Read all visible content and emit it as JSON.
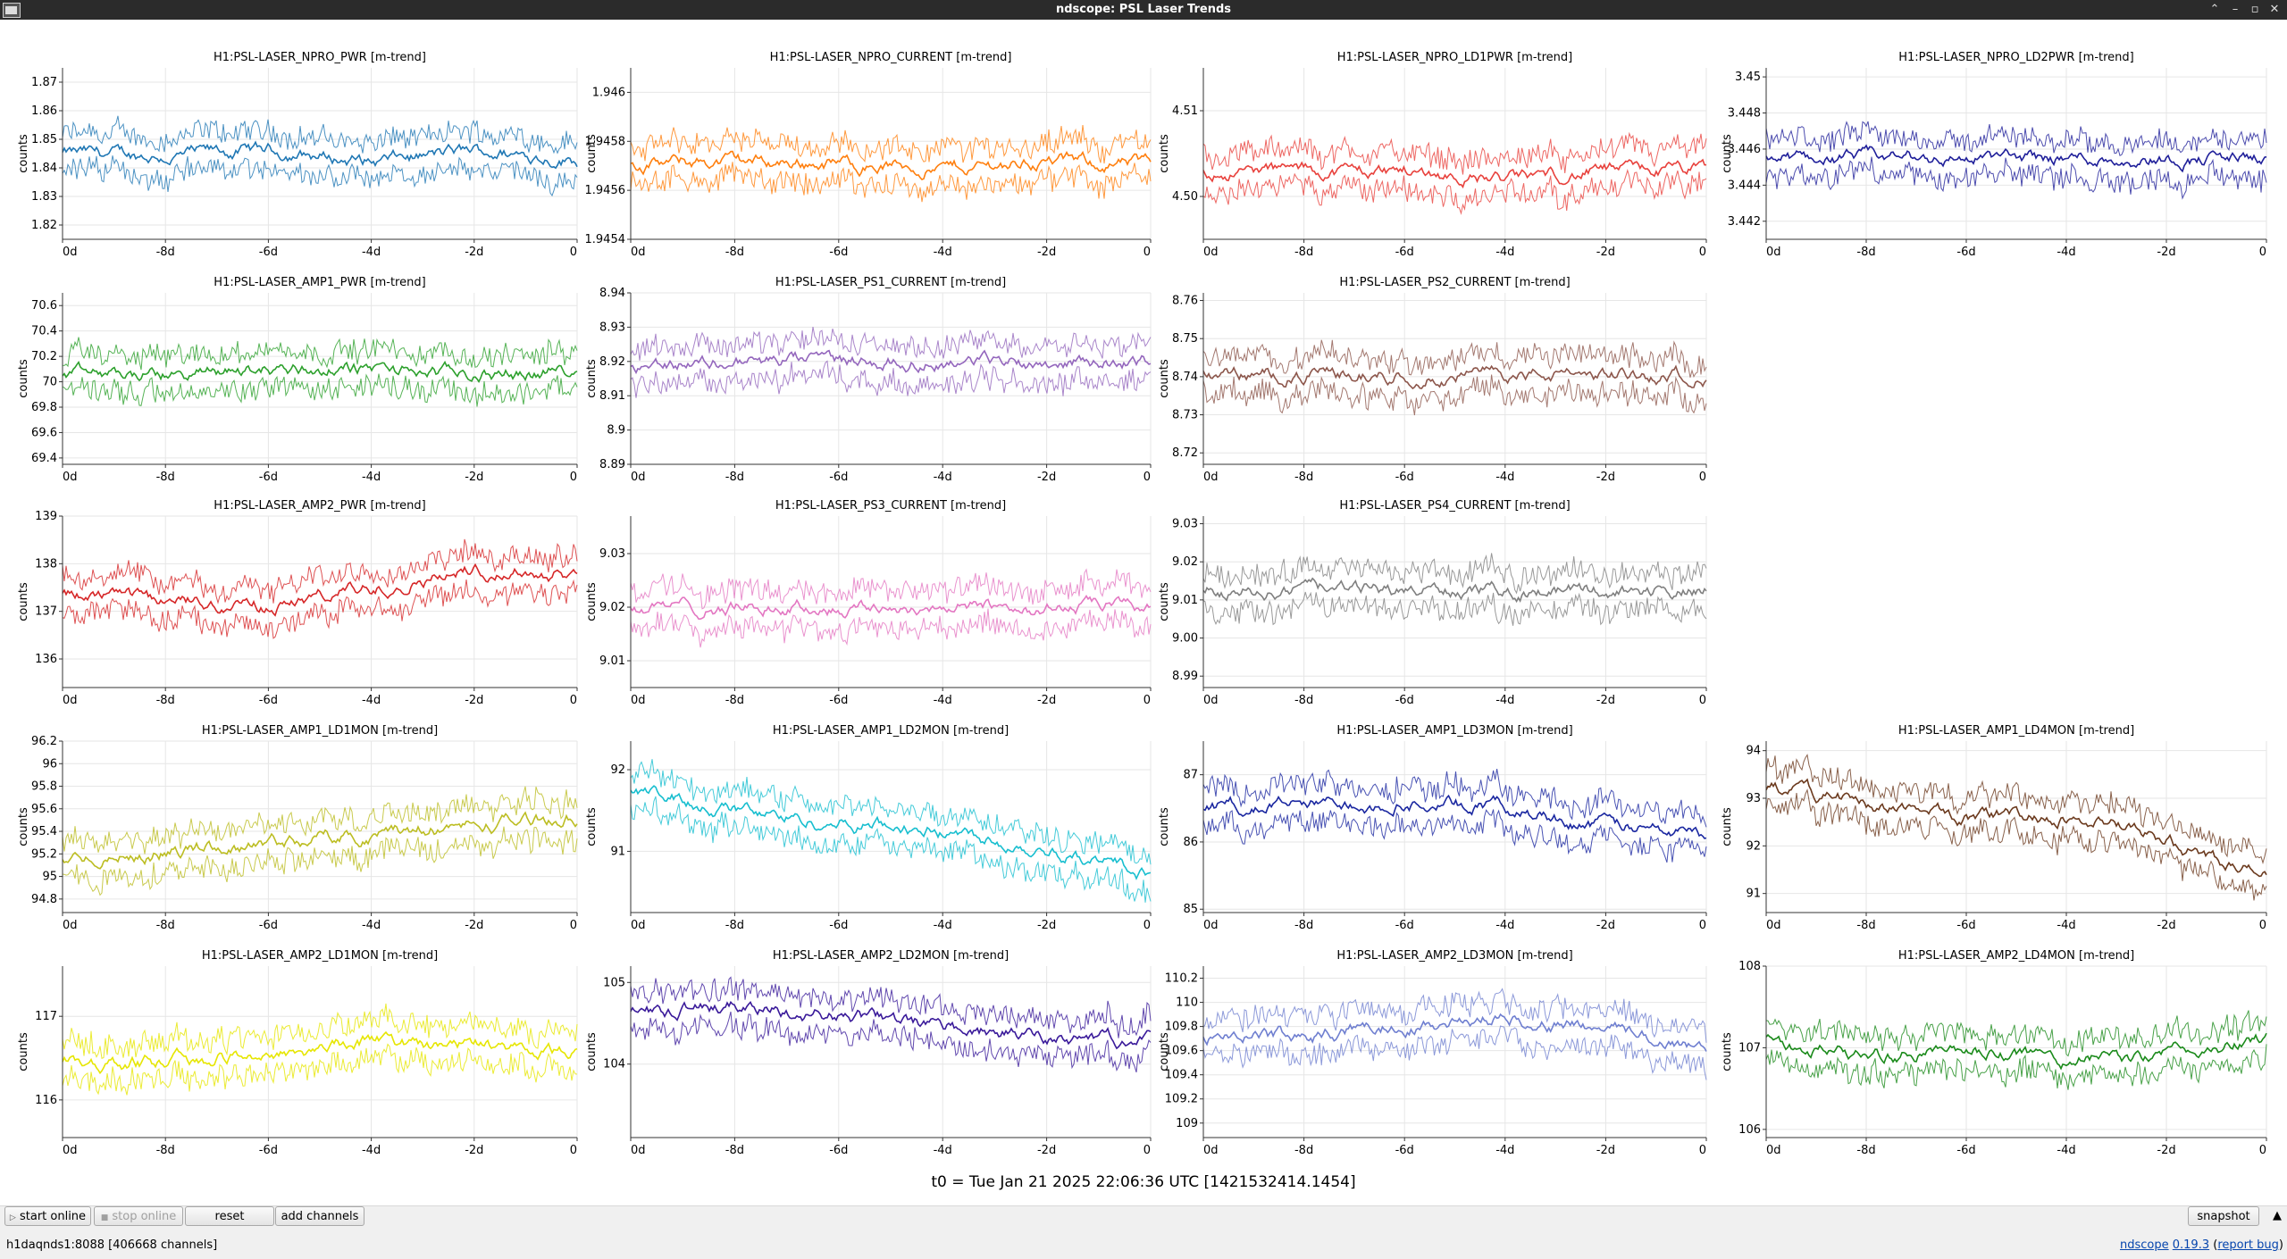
{
  "window": {
    "title": "ndscope: PSL Laser Trends"
  },
  "t0_label": "t0 = Tue Jan 21 2025 22:06:36 UTC [1421532414.1454]",
  "toolbar": {
    "start_online": "start online",
    "stop_online": "stop online",
    "reset": "reset",
    "add_channels": "add channels",
    "snapshot": "snapshot"
  },
  "status": {
    "server": "h1daqnds1:8088",
    "channels": "[406668 channels]"
  },
  "footer": {
    "app": "ndscope",
    "version": "0.19.3",
    "report": "report bug"
  },
  "ylabel_text": "counts",
  "x_ticks": [
    "0d",
    "-8d",
    "-6d",
    "-4d",
    "-2d",
    "0"
  ],
  "chart_data": [
    {
      "type": "line",
      "title": "H1:PSL-LASER_NPRO_PWR [m-trend]",
      "ylabel": "counts",
      "color": "#1f77b4",
      "ylim": [
        1.815,
        1.875
      ],
      "yticks": [
        "1.87",
        "1.86",
        "1.85",
        "1.84",
        "1.83",
        "1.82"
      ],
      "series": [
        {
          "x": [
            -10,
            -8,
            -6,
            -4,
            -2,
            0
          ],
          "values": [
            1.845,
            1.844,
            1.846,
            1.842,
            1.846,
            1.843
          ]
        }
      ]
    },
    {
      "type": "line",
      "title": "H1:PSL-LASER_NPRO_CURRENT [m-trend]",
      "ylabel": "counts",
      "color": "#ff7f0e",
      "ylim": [
        1.9454,
        1.9461
      ],
      "yticks": [
        "1.946",
        "1.9458",
        "1.9456",
        "1.9454"
      ],
      "series": [
        {
          "x": [
            -10,
            -8,
            -6,
            -4,
            -2,
            0
          ],
          "values": [
            1.9457,
            1.94572,
            1.94571,
            1.94569,
            1.94572,
            1.9457
          ]
        }
      ]
    },
    {
      "type": "line",
      "title": "H1:PSL-LASER_NPRO_LD1PWR [m-trend]",
      "ylabel": "counts",
      "color": "#e8413c",
      "ylim": [
        4.495,
        4.515
      ],
      "yticks": [
        "4.51",
        "4.50"
      ],
      "series": [
        {
          "x": [
            -10,
            -8,
            -6,
            -4,
            -2,
            0
          ],
          "values": [
            4.503,
            4.503,
            4.503,
            4.502,
            4.503,
            4.503
          ]
        }
      ]
    },
    {
      "type": "line",
      "title": "H1:PSL-LASER_NPRO_LD2PWR [m-trend]",
      "ylabel": "counts",
      "color": "#1f1f9a",
      "ylim": [
        3.441,
        3.4505
      ],
      "yticks": [
        "3.45",
        "3.448",
        "3.446",
        "3.444",
        "3.442"
      ],
      "series": [
        {
          "x": [
            -10,
            -8,
            -6,
            -4,
            -2,
            0
          ],
          "values": [
            3.4455,
            3.4455,
            3.4455,
            3.4455,
            3.4455,
            3.4455
          ]
        }
      ]
    },
    {
      "type": "line",
      "title": "H1:PSL-LASER_AMP1_PWR [m-trend]",
      "ylabel": "counts",
      "color": "#2ca02c",
      "ylim": [
        69.35,
        70.7
      ],
      "yticks": [
        "70.6",
        "70.4",
        "70.2",
        "70",
        "69.8",
        "69.6",
        "69.4"
      ],
      "series": [
        {
          "x": [
            -10,
            -8,
            -6,
            -4,
            -2,
            0
          ],
          "values": [
            70.05,
            70.05,
            70.1,
            70.1,
            70.05,
            70.1
          ]
        }
      ]
    },
    {
      "type": "line",
      "title": "H1:PSL-LASER_PS1_CURRENT [m-trend]",
      "ylabel": "counts",
      "color": "#9467bd",
      "ylim": [
        8.89,
        8.94
      ],
      "yticks": [
        "8.94",
        "8.93",
        "8.92",
        "8.91",
        "8.9",
        "8.89"
      ],
      "series": [
        {
          "x": [
            -10,
            -8,
            -6,
            -4,
            -2,
            0
          ],
          "values": [
            8.9195,
            8.92,
            8.92,
            8.92,
            8.92,
            8.92
          ]
        }
      ]
    },
    {
      "type": "line",
      "title": "H1:PSL-LASER_PS2_CURRENT [m-trend]",
      "ylabel": "counts",
      "color": "#8c564b",
      "ylim": [
        8.717,
        8.762
      ],
      "yticks": [
        "8.76",
        "8.75",
        "8.74",
        "8.73",
        "8.72"
      ],
      "series": [
        {
          "x": [
            -10,
            -8,
            -6,
            -4,
            -2,
            0
          ],
          "values": [
            8.7405,
            8.7405,
            8.7405,
            8.7405,
            8.7405,
            8.7405
          ]
        }
      ]
    },
    null,
    {
      "type": "line",
      "title": "H1:PSL-LASER_AMP2_PWR [m-trend]",
      "ylabel": "counts",
      "color": "#d62728",
      "ylim": [
        135.4,
        139
      ],
      "yticks": [
        "139",
        "138",
        "137",
        "136"
      ],
      "series": [
        {
          "x": [
            -10,
            -8,
            -6,
            -4,
            -2,
            0
          ],
          "values": [
            137.3,
            137.2,
            137.1,
            137.5,
            137.9,
            137.8
          ]
        }
      ]
    },
    {
      "type": "line",
      "title": "H1:PSL-LASER_PS3_CURRENT [m-trend]",
      "ylabel": "counts",
      "color": "#e377c2",
      "ylim": [
        9.005,
        9.037
      ],
      "yticks": [
        "9.03",
        "9.02",
        "9.01"
      ],
      "series": [
        {
          "x": [
            -10,
            -8,
            -6,
            -4,
            -2,
            0
          ],
          "values": [
            9.02,
            9.02,
            9.02,
            9.02,
            9.02,
            9.02
          ]
        }
      ]
    },
    {
      "type": "line",
      "title": "H1:PSL-LASER_PS4_CURRENT [m-trend]",
      "ylabel": "counts",
      "color": "#7f7f7f",
      "ylim": [
        8.987,
        9.032
      ],
      "yticks": [
        "9.03",
        "9.02",
        "9.01",
        "9.00",
        "8.99"
      ],
      "series": [
        {
          "x": [
            -10,
            -8,
            -6,
            -4,
            -2,
            0
          ],
          "values": [
            9.0125,
            9.0125,
            9.0125,
            9.0125,
            9.0125,
            9.0125
          ]
        }
      ]
    },
    null,
    {
      "type": "line",
      "title": "H1:PSL-LASER_AMP1_LD1MON [m-trend]",
      "ylabel": "counts",
      "color": "#bcbd22",
      "ylim": [
        94.68,
        96.2
      ],
      "yticks": [
        "96.2",
        "96",
        "95.8",
        "95.6",
        "95.4",
        "95.2",
        "95",
        "94.8"
      ],
      "series": [
        {
          "x": [
            -10,
            -8,
            -6,
            -4,
            -2,
            0
          ],
          "values": [
            95.15,
            95.22,
            95.3,
            95.38,
            95.45,
            95.55
          ]
        }
      ]
    },
    {
      "type": "line",
      "title": "H1:PSL-LASER_AMP1_LD2MON [m-trend]",
      "ylabel": "counts",
      "color": "#17becf",
      "ylim": [
        90.25,
        92.35
      ],
      "yticks": [
        "92",
        "91"
      ],
      "series": [
        {
          "x": [
            -10,
            -8,
            -6,
            -4,
            -2,
            0
          ],
          "values": [
            91.72,
            91.5,
            91.35,
            91.25,
            91.05,
            90.7
          ]
        }
      ]
    },
    {
      "type": "line",
      "title": "H1:PSL-LASER_AMP1_LD3MON [m-trend]",
      "ylabel": "counts",
      "color": "#1a27a0",
      "ylim": [
        84.95,
        87.5
      ],
      "yticks": [
        "87",
        "86",
        "85"
      ],
      "series": [
        {
          "x": [
            -10,
            -8,
            -6,
            -4,
            -2,
            0
          ],
          "values": [
            86.55,
            86.55,
            86.6,
            86.5,
            86.25,
            86.1
          ]
        }
      ]
    },
    {
      "type": "line",
      "title": "H1:PSL-LASER_AMP1_LD4MON [m-trend]",
      "ylabel": "counts",
      "color": "#6b3a1e",
      "ylim": [
        90.6,
        94.2
      ],
      "yticks": [
        "94",
        "93",
        "92",
        "91"
      ],
      "series": [
        {
          "x": [
            -10,
            -8,
            -6,
            -4,
            -2,
            0
          ],
          "values": [
            93.25,
            92.9,
            92.6,
            92.65,
            92.1,
            91.35
          ]
        }
      ]
    },
    {
      "type": "line",
      "title": "H1:PSL-LASER_AMP2_LD1MON [m-trend]",
      "ylabel": "counts",
      "color": "#e6e600",
      "ylim": [
        115.55,
        117.6
      ],
      "yticks": [
        "117",
        "116"
      ],
      "series": [
        {
          "x": [
            -10,
            -8,
            -6,
            -4,
            -2,
            0
          ],
          "values": [
            116.45,
            116.45,
            116.55,
            116.7,
            116.65,
            116.6
          ]
        }
      ]
    },
    {
      "type": "line",
      "title": "H1:PSL-LASER_AMP2_LD2MON [m-trend]",
      "ylabel": "counts",
      "color": "#3a1a9a",
      "ylim": [
        103.1,
        105.2
      ],
      "yticks": [
        "105",
        "104"
      ],
      "series": [
        {
          "x": [
            -10,
            -8,
            -6,
            -4,
            -2,
            0
          ],
          "values": [
            104.65,
            104.7,
            104.6,
            104.45,
            104.3,
            104.3
          ]
        }
      ]
    },
    {
      "type": "line",
      "title": "H1:PSL-LASER_AMP2_LD3MON [m-trend]",
      "ylabel": "counts",
      "color": "#6f7fd0",
      "ylim": [
        108.88,
        110.3
      ],
      "yticks": [
        "110.2",
        "110",
        "109.8",
        "109.6",
        "109.4",
        "109.2",
        "109"
      ],
      "series": [
        {
          "x": [
            -10,
            -8,
            -6,
            -4,
            -2,
            0
          ],
          "values": [
            109.7,
            109.72,
            109.82,
            109.88,
            109.78,
            109.62
          ]
        }
      ]
    },
    {
      "type": "line",
      "title": "H1:PSL-LASER_AMP2_LD4MON [m-trend]",
      "ylabel": "counts",
      "color": "#1a8a1a",
      "ylim": [
        105.9,
        108
      ],
      "yticks": [
        "108",
        "107",
        "106"
      ],
      "series": [
        {
          "x": [
            -10,
            -8,
            -6,
            -4,
            -2,
            0
          ],
          "values": [
            107.1,
            106.9,
            106.95,
            106.85,
            106.9,
            107.1
          ]
        }
      ]
    }
  ]
}
